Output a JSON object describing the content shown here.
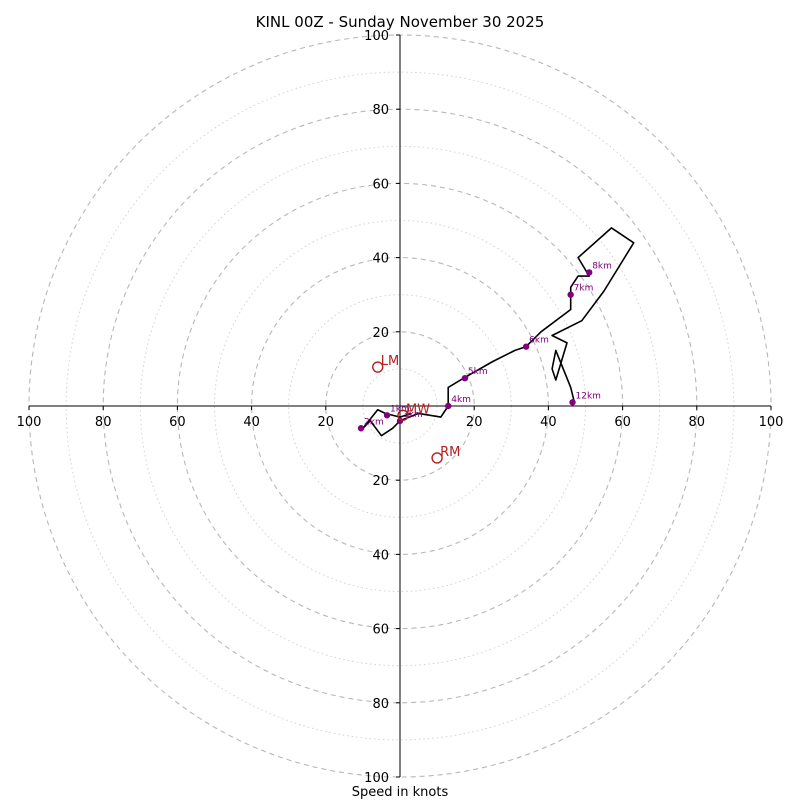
{
  "colors": {
    "background": "#ffffff",
    "trace": "#000000",
    "height_marker": "#800080",
    "motion_marker": "#b22222",
    "ring": "#b8b8b8"
  },
  "chart_data": {
    "type": "scatter",
    "subtype": "hodograph",
    "title": "KINL 00Z - Sunday November 30 2025",
    "xlabel": "Speed in knots",
    "ylabel": "",
    "xlim": [
      -100,
      100
    ],
    "ylim": [
      -100,
      100
    ],
    "ring_major_step": 20,
    "ring_minor_step": 10,
    "x_tick_labels": [
      "100",
      "80",
      "60",
      "40",
      "20",
      "20",
      "40",
      "60",
      "80",
      "100"
    ],
    "y_tick_labels": [
      "100",
      "80",
      "60",
      "40",
      "20",
      "20",
      "40",
      "60",
      "80",
      "100"
    ],
    "hodograph_u": [
      3,
      0,
      -4,
      -6,
      -10,
      -8,
      -5,
      -2,
      0,
      5,
      11,
      13,
      13,
      18,
      25,
      31,
      34,
      38,
      46,
      46,
      48,
      51,
      48,
      57,
      63,
      55,
      49,
      41,
      45,
      42,
      41,
      42,
      46,
      47
    ],
    "hodograph_v": [
      -2,
      -3,
      -2,
      -1,
      -6,
      -4,
      -8,
      -6,
      -4,
      -2,
      -3,
      0,
      5,
      8,
      12,
      15,
      16,
      20,
      26,
      32,
      35,
      35,
      40,
      48,
      44,
      31,
      23,
      19,
      17,
      7,
      10,
      15,
      5,
      1
    ],
    "height_markers": [
      {
        "label": "1km",
        "u": -3.5,
        "v": -2.5
      },
      {
        "label": "2km",
        "u": -10.5,
        "v": -6
      },
      {
        "label": "3km",
        "u": 0,
        "v": -4
      },
      {
        "label": "4km",
        "u": 13,
        "v": 0
      },
      {
        "label": "5km",
        "u": 17.5,
        "v": 7.5
      },
      {
        "label": "6km",
        "u": 34,
        "v": 16
      },
      {
        "label": "7km",
        "u": 46,
        "v": 30
      },
      {
        "label": "8km",
        "u": 51,
        "v": 36
      },
      {
        "label": "12km",
        "u": 46.5,
        "v": 1
      }
    ],
    "storm_motion": [
      {
        "label": "LM",
        "u": -6,
        "v": 10.5
      },
      {
        "label": "MW",
        "u": 0.8,
        "v": -2.5
      },
      {
        "label": "RM",
        "u": 10,
        "v": -14
      }
    ]
  }
}
